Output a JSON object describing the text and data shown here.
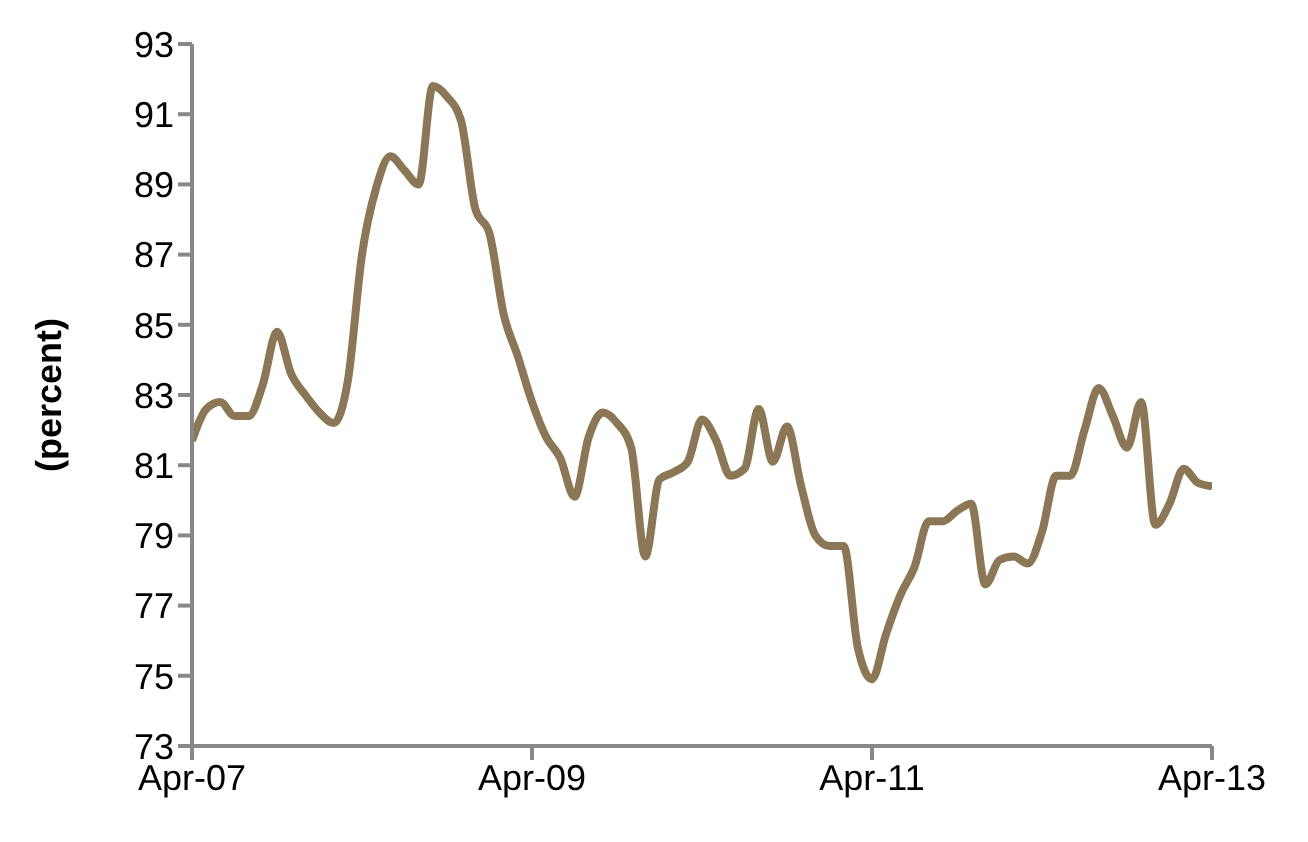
{
  "chart_data": {
    "type": "line",
    "ylabel": "(percent)",
    "x": [
      "2007-04",
      "2007-05",
      "2007-06",
      "2007-07",
      "2007-08",
      "2007-09",
      "2007-10",
      "2007-11",
      "2007-12",
      "2008-01",
      "2008-02",
      "2008-03",
      "2008-04",
      "2008-05",
      "2008-06",
      "2008-07",
      "2008-08",
      "2008-09",
      "2008-10",
      "2008-11",
      "2008-12",
      "2009-01",
      "2009-02",
      "2009-03",
      "2009-04",
      "2009-05",
      "2009-06",
      "2009-07",
      "2009-08",
      "2009-09",
      "2009-10",
      "2009-11",
      "2009-12",
      "2010-01",
      "2010-02",
      "2010-03",
      "2010-04",
      "2010-05",
      "2010-06",
      "2010-07",
      "2010-08",
      "2010-09",
      "2010-10",
      "2010-11",
      "2010-12",
      "2011-01",
      "2011-02",
      "2011-03",
      "2011-04",
      "2011-05",
      "2011-06",
      "2011-07",
      "2011-08",
      "2011-09",
      "2011-10",
      "2011-11",
      "2011-12",
      "2012-01",
      "2012-02",
      "2012-03",
      "2012-04",
      "2012-05",
      "2012-06",
      "2012-07",
      "2012-08",
      "2012-09",
      "2012-10",
      "2012-11",
      "2012-12",
      "2013-01",
      "2013-02",
      "2013-03",
      "2013-04"
    ],
    "series": [
      {
        "color": "#8b7755",
        "values": [
          81.7,
          82.6,
          82.8,
          82.4,
          82.4,
          83.3,
          84.8,
          83.6,
          83.0,
          82.5,
          82.2,
          83.4,
          87.0,
          88.9,
          89.8,
          89.4,
          89.0,
          91.8,
          91.5,
          90.8,
          88.3,
          87.6,
          85.3,
          84.1,
          82.8,
          81.8,
          81.2,
          80.1,
          81.8,
          82.5,
          82.2,
          81.5,
          78.4,
          80.6,
          80.8,
          81.1,
          82.3,
          81.7,
          80.7,
          80.9,
          82.6,
          81.1,
          82.1,
          80.4,
          79.0,
          78.7,
          78.7,
          75.8,
          74.9,
          76.2,
          77.3,
          78.1,
          79.4,
          79.4,
          79.7,
          79.9,
          77.6,
          78.3,
          78.4,
          78.2,
          79.1,
          80.7,
          80.7,
          82.0,
          83.2,
          82.4,
          81.5,
          82.8,
          79.3,
          79.9,
          80.9,
          80.5,
          80.4
        ]
      }
    ],
    "xlim": [
      "2007-04",
      "2013-04"
    ],
    "xticks": [
      {
        "value": "2007-04",
        "label": "Apr-07"
      },
      {
        "value": "2009-04",
        "label": "Apr-09"
      },
      {
        "value": "2011-04",
        "label": "Apr-11"
      },
      {
        "value": "2013-04",
        "label": "Apr-13"
      }
    ],
    "ylim": [
      73,
      93
    ],
    "yticks": [
      73,
      75,
      77,
      79,
      81,
      83,
      85,
      87,
      89,
      91,
      93
    ],
    "grid": false,
    "legend": false,
    "marker": "none",
    "line_style": "solid"
  }
}
